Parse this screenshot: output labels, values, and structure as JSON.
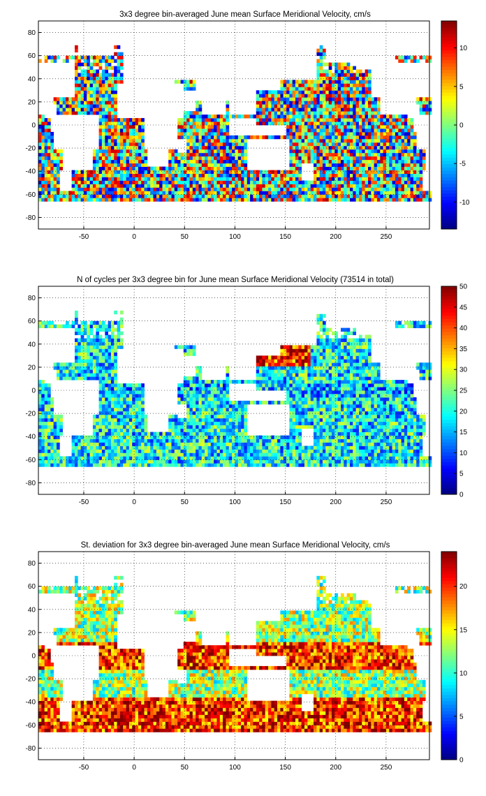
{
  "chart_data": [
    {
      "type": "heatmap",
      "title": "3x3 degree bin-averaged June mean Surface Meridional Velocity, cm/s",
      "xlim": [
        -95,
        293
      ],
      "ylim": [
        -90,
        90
      ],
      "xticks": [
        -50,
        0,
        50,
        100,
        150,
        200,
        250
      ],
      "yticks": [
        80,
        60,
        40,
        20,
        0,
        -20,
        -40,
        -60,
        -80
      ],
      "grid": "dotted",
      "colormap": "jet",
      "colorbar": {
        "clim": [
          -13.5,
          13.5
        ],
        "ticks": [
          10,
          5,
          0,
          -5,
          -10
        ]
      },
      "bin_size_deg": 3
    },
    {
      "type": "heatmap",
      "title": "N of cycles per 3x3 degree bin for June mean Surface Meridional Velocity (73514 in total)",
      "xlim": [
        -95,
        293
      ],
      "ylim": [
        -90,
        90
      ],
      "xticks": [
        -50,
        0,
        50,
        100,
        150,
        200,
        250
      ],
      "yticks": [
        80,
        60,
        40,
        20,
        0,
        -20,
        -40,
        -60,
        -80
      ],
      "grid": "dotted",
      "colormap": "jet",
      "colorbar": {
        "clim": [
          0,
          50
        ],
        "ticks": [
          50,
          45,
          40,
          35,
          30,
          25,
          20,
          15,
          10,
          5,
          0
        ]
      },
      "bin_size_deg": 3
    },
    {
      "type": "heatmap",
      "title": "St. deviation for 3x3 degree bin-averaged June mean Surface Meridional Velocity, cm/s",
      "xlim": [
        -95,
        293
      ],
      "ylim": [
        -90,
        90
      ],
      "xticks": [
        -50,
        0,
        50,
        100,
        150,
        200,
        250
      ],
      "yticks": [
        80,
        60,
        40,
        20,
        0,
        -20,
        -40,
        -60,
        -80
      ],
      "grid": "dotted",
      "colormap": "jet",
      "colorbar": {
        "clim": [
          0,
          24
        ],
        "ticks": [
          20,
          15,
          10,
          5,
          0
        ]
      },
      "bin_size_deg": 3
    }
  ]
}
